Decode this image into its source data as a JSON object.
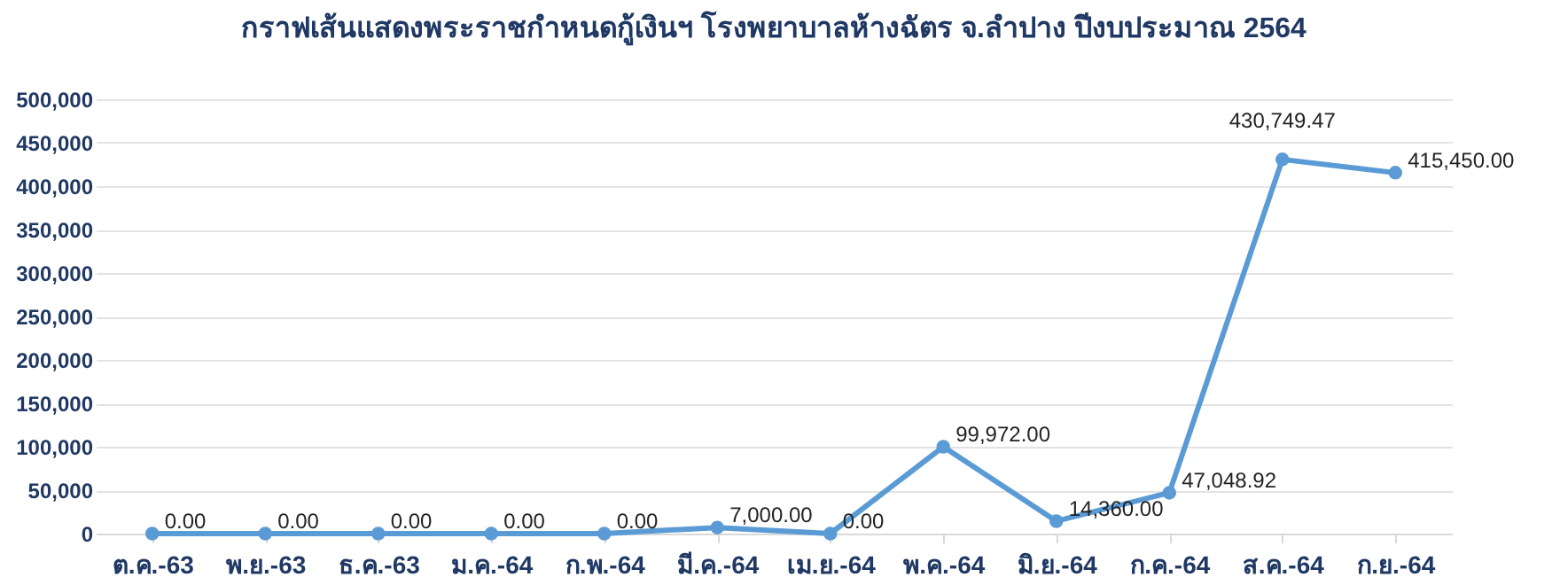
{
  "chart_data": {
    "type": "line",
    "title": "กราฟเส้นแสดงพระราชกำหนดกู้เงินฯ โรงพยาบาลห้างฉัตร จ.ลำปาง ปีงบประมาณ 2564",
    "categories": [
      "ต.ค.-63",
      "พ.ย.-63",
      "ธ.ค.-63",
      "ม.ค.-64",
      "ก.พ.-64",
      "มี.ค.-64",
      "เม.ย.-64",
      "พ.ค.-64",
      "มิ.ย.-64",
      "ก.ค.-64",
      "ส.ค.-64",
      "ก.ย.-64"
    ],
    "series": [
      {
        "color": "#5b9bd5",
        "values": [
          0,
          0,
          0,
          0,
          0,
          7000,
          0,
          99972,
          14360,
          47048.92,
          430749.47,
          415450
        ],
        "value_labels": [
          "0.00",
          "0.00",
          "0.00",
          "0.00",
          "0.00",
          "7,000.00",
          "0.00",
          "99,972.00",
          "14,360.00",
          "47,048.92",
          "430,749.47",
          "415,450.00"
        ]
      }
    ],
    "ylim": [
      0,
      500000
    ],
    "yticks": [
      {
        "value": 0,
        "label": "0"
      },
      {
        "value": 50000,
        "label": "50,000"
      },
      {
        "value": 100000,
        "label": "100,000"
      },
      {
        "value": 150000,
        "label": "150,000"
      },
      {
        "value": 200000,
        "label": "200,000"
      },
      {
        "value": 250000,
        "label": "250,000"
      },
      {
        "value": 300000,
        "label": "300,000"
      },
      {
        "value": 350000,
        "label": "350,000"
      },
      {
        "value": 400000,
        "label": "400,000"
      },
      {
        "value": 450000,
        "label": "450,000"
      },
      {
        "value": 500000,
        "label": "500,000"
      }
    ],
    "grid": "y",
    "marker": "circle",
    "line_style": "solid"
  }
}
